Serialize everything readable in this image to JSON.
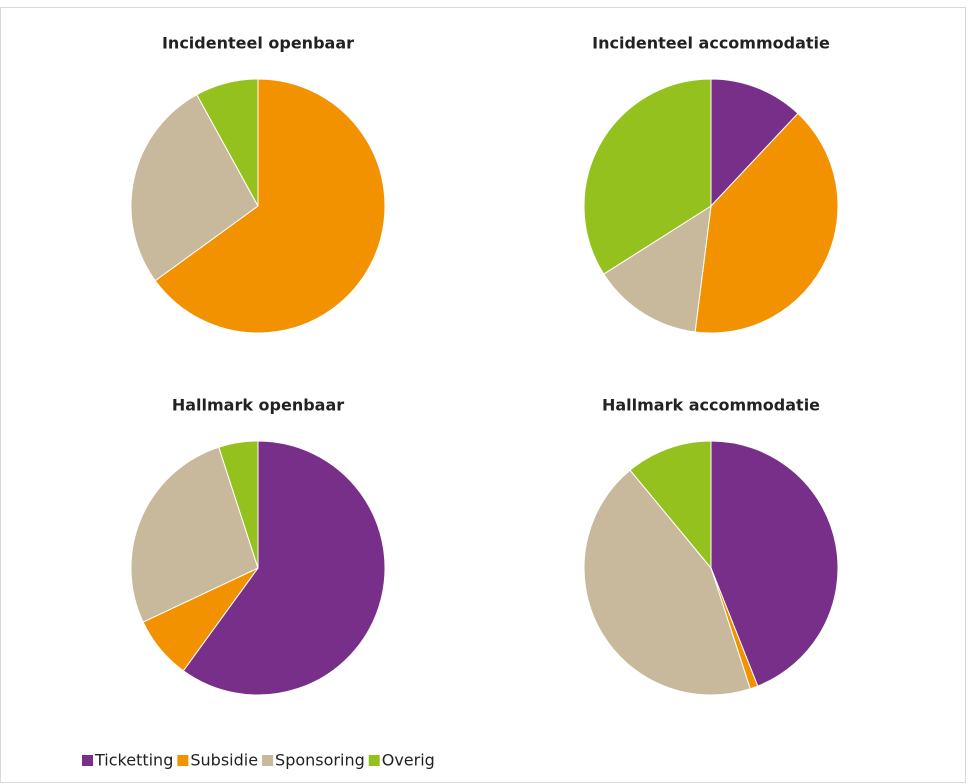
{
  "chart_data": [
    {
      "type": "pie",
      "title": "Incidenteel openbaar",
      "categories": [
        "Ticketting",
        "Subsidie",
        "Sponsoring",
        "Overig"
      ],
      "values": [
        0,
        65,
        27,
        8
      ],
      "colors": [
        "#772f8a",
        "#f39200",
        "#c9b99c",
        "#95c11f"
      ]
    },
    {
      "type": "pie",
      "title": "Incidenteel accommodatie",
      "categories": [
        "Ticketting",
        "Subsidie",
        "Sponsoring",
        "Overig"
      ],
      "values": [
        12,
        40,
        14,
        34
      ],
      "colors": [
        "#772f8a",
        "#f39200",
        "#c9b99c",
        "#95c11f"
      ]
    },
    {
      "type": "pie",
      "title": "Hallmark openbaar",
      "categories": [
        "Ticketting",
        "Subsidie",
        "Sponsoring",
        "Overig"
      ],
      "values": [
        60,
        8,
        27,
        5
      ],
      "colors": [
        "#772f8a",
        "#f39200",
        "#c9b99c",
        "#95c11f"
      ]
    },
    {
      "type": "pie",
      "title": "Hallmark accommodatie",
      "categories": [
        "Ticketting",
        "Subsidie",
        "Sponsoring",
        "Overig"
      ],
      "values": [
        44,
        1,
        44,
        11
      ],
      "colors": [
        "#772f8a",
        "#f39200",
        "#c9b99c",
        "#95c11f"
      ]
    }
  ]
}
